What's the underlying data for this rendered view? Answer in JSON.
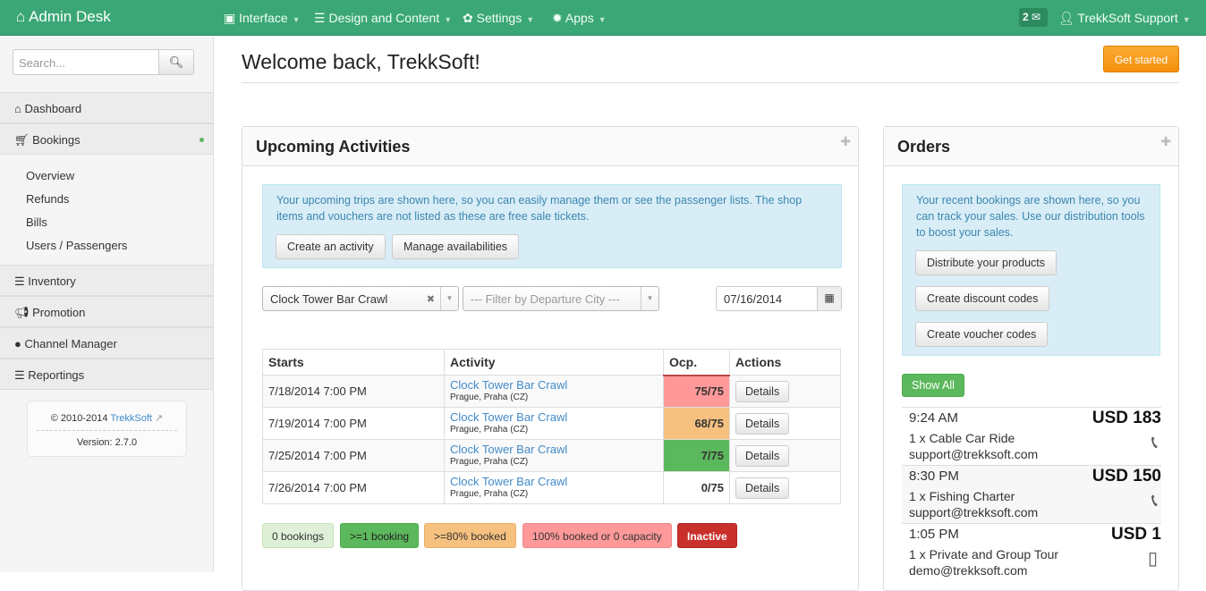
{
  "nav": {
    "brand": "Admin Desk",
    "menus": [
      "Interface",
      "Design and Content",
      "Settings",
      "Apps"
    ],
    "messages": "2",
    "user": "TrekkSoft Support"
  },
  "sidebar": {
    "search_placeholder": "Search...",
    "items": [
      "Dashboard",
      "Bookings",
      "Inventory",
      "Promotion",
      "Channel Manager",
      "Reportings"
    ],
    "sub_items": [
      "Overview",
      "Refunds",
      "Bills",
      "Users / Passengers"
    ],
    "copyright": "© 2010-2014",
    "company_link": "TrekkSoft",
    "version": "Version: 2.7.0"
  },
  "header": {
    "title": "Welcome back, TrekkSoft!",
    "get_started": "Get started"
  },
  "upcoming": {
    "title": "Upcoming Activities",
    "info": "Your upcoming trips are shown here, so you can easily manage them or see the passenger lists. The shop items and vouchers are not listed as these are free sale tickets.",
    "create": "Create an activity",
    "manage": "Manage availabilities",
    "activity_filter": "Clock Tower Bar Crawl",
    "city_placeholder": "--- Filter by Departure City ---",
    "date": "07/16/2014",
    "columns": [
      "Starts",
      "Activity",
      "Ocp.",
      "Actions"
    ],
    "rows": [
      {
        "starts": "7/18/2014 7:00 PM",
        "activity": "Clock Tower Bar Crawl",
        "city": "Prague, Praha (CZ)",
        "ocp": "75/75",
        "color": "#f99",
        "action": "Details"
      },
      {
        "starts": "7/19/2014 7:00 PM",
        "activity": "Clock Tower Bar Crawl",
        "city": "Prague, Praha (CZ)",
        "ocp": "68/75",
        "color": "#f6c17f",
        "action": "Details"
      },
      {
        "starts": "7/25/2014 7:00 PM",
        "activity": "Clock Tower Bar Crawl",
        "city": "Prague, Praha (CZ)",
        "ocp": "7/75",
        "color": "#5cb85c",
        "action": "Details"
      },
      {
        "starts": "7/26/2014 7:00 PM",
        "activity": "Clock Tower Bar Crawl",
        "city": "Prague, Praha (CZ)",
        "ocp": "0/75",
        "color": "",
        "action": "Details"
      }
    ],
    "legend": [
      "0 bookings",
      ">=1 booking",
      ">=80% booked",
      "100% booked or 0 capacity",
      "Inactive"
    ]
  },
  "orders": {
    "title": "Orders",
    "info": "Your recent bookings are shown here, so you can track your sales. Use our distribution tools to boost your sales.",
    "buttons": [
      "Distribute your products",
      "Create discount codes",
      "Create voucher codes"
    ],
    "show_all": "Show All",
    "items": [
      {
        "time": "9:24 AM",
        "amount": "USD 183",
        "product": "1 x Cable Car Ride",
        "email": "support@trekksoft.com",
        "icon": "phone-icon"
      },
      {
        "time": "8:30 PM",
        "amount": "USD 150",
        "product": "1 x Fishing Charter",
        "email": "support@trekksoft.com",
        "icon": "phone-icon"
      },
      {
        "time": "1:05 PM",
        "amount": "USD 1",
        "product": "1 x Private and Group Tour",
        "email": "demo@trekksoft.com",
        "icon": "mobile-icon"
      }
    ]
  }
}
